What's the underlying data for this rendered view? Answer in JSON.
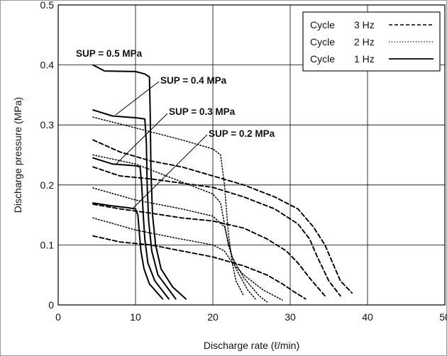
{
  "chart_data": {
    "type": "line",
    "title": "",
    "xlabel": "Discharge rate (ℓ/min)",
    "ylabel": "Discharge pressure (MPa)",
    "xlim": [
      0,
      50
    ],
    "ylim": [
      0,
      0.5
    ],
    "xticks": [
      "0",
      "10",
      "20",
      "30",
      "40",
      "50"
    ],
    "yticks": [
      "0",
      "0.1",
      "0.2",
      "0.3",
      "0.4",
      "0.5"
    ],
    "grid": true,
    "legend_position": "top-right",
    "legend": [
      {
        "label": "Cycle",
        "freq": "3 Hz",
        "style": "dashed"
      },
      {
        "label": "Cycle",
        "freq": "2 Hz",
        "style": "dotted"
      },
      {
        "label": "Cycle",
        "freq": "1 Hz",
        "style": "solid"
      }
    ],
    "annotations": [
      {
        "text": "SUP = 0.5 MPa"
      },
      {
        "text": "SUP = 0.4 MPa"
      },
      {
        "text": "SUP = 0.3 MPa"
      },
      {
        "text": "SUP = 0.2 MPa"
      }
    ],
    "series": [
      {
        "sup": "0.5 MPa",
        "freq": "1 Hz",
        "style": "solid",
        "points": [
          [
            4.5,
            0.4
          ],
          [
            6,
            0.39
          ],
          [
            10,
            0.389
          ],
          [
            11.2,
            0.385
          ],
          [
            11.8,
            0.38
          ],
          [
            11.9,
            0.32
          ],
          [
            12.0,
            0.22
          ],
          [
            12.2,
            0.15
          ],
          [
            12.6,
            0.1
          ],
          [
            13.3,
            0.06
          ],
          [
            14.8,
            0.03
          ],
          [
            16.5,
            0.01
          ]
        ]
      },
      {
        "sup": "0.4 MPa",
        "freq": "1 Hz",
        "style": "solid",
        "points": [
          [
            4.5,
            0.325
          ],
          [
            7,
            0.315
          ],
          [
            9,
            0.313
          ],
          [
            10,
            0.312
          ],
          [
            11.2,
            0.31
          ],
          [
            11.4,
            0.27
          ],
          [
            11.5,
            0.2
          ],
          [
            11.7,
            0.14
          ],
          [
            12.1,
            0.09
          ],
          [
            12.9,
            0.05
          ],
          [
            15.2,
            0.01
          ]
        ]
      },
      {
        "sup": "0.3 MPa",
        "freq": "1 Hz",
        "style": "solid",
        "points": [
          [
            4.5,
            0.245
          ],
          [
            7,
            0.235
          ],
          [
            9,
            0.233
          ],
          [
            10,
            0.232
          ],
          [
            10.6,
            0.23
          ],
          [
            10.8,
            0.2
          ],
          [
            11.0,
            0.15
          ],
          [
            11.2,
            0.11
          ],
          [
            11.6,
            0.07
          ],
          [
            12.5,
            0.04
          ],
          [
            14.3,
            0.01
          ]
        ]
      },
      {
        "sup": "0.2 MPa",
        "freq": "1 Hz",
        "style": "solid",
        "points": [
          [
            4.5,
            0.17
          ],
          [
            7,
            0.165
          ],
          [
            9,
            0.162
          ],
          [
            10,
            0.16
          ],
          [
            10.3,
            0.15
          ],
          [
            10.5,
            0.12
          ],
          [
            10.7,
            0.09
          ],
          [
            11.1,
            0.06
          ],
          [
            11.8,
            0.035
          ],
          [
            13.5,
            0.01
          ]
        ]
      },
      {
        "sup": "0.5 MPa",
        "freq": "2 Hz",
        "style": "dotted",
        "points": [
          [
            4.5,
            0.313
          ],
          [
            10,
            0.295
          ],
          [
            16,
            0.275
          ],
          [
            20,
            0.26
          ],
          [
            21,
            0.25
          ],
          [
            21.5,
            0.2
          ],
          [
            22,
            0.12
          ],
          [
            22.5,
            0.07
          ],
          [
            23,
            0.04
          ],
          [
            24,
            0.015
          ]
        ]
      },
      {
        "sup": "0.4 MPa",
        "freq": "2 Hz",
        "style": "dotted",
        "points": [
          [
            4.5,
            0.25
          ],
          [
            10,
            0.235
          ],
          [
            16,
            0.205
          ],
          [
            20,
            0.185
          ],
          [
            21,
            0.17
          ],
          [
            22,
            0.1
          ],
          [
            23,
            0.06
          ],
          [
            24.5,
            0.025
          ],
          [
            25.5,
            0.01
          ]
        ]
      },
      {
        "sup": "0.3 MPa",
        "freq": "2 Hz",
        "style": "dotted",
        "points": [
          [
            4.5,
            0.195
          ],
          [
            10,
            0.175
          ],
          [
            16,
            0.16
          ],
          [
            20,
            0.148
          ],
          [
            21.5,
            0.13
          ],
          [
            22.5,
            0.08
          ],
          [
            24,
            0.045
          ],
          [
            26,
            0.015
          ],
          [
            27,
            0.005
          ]
        ]
      },
      {
        "sup": "0.2 MPa",
        "freq": "2 Hz",
        "style": "dotted",
        "points": [
          [
            4.5,
            0.145
          ],
          [
            10,
            0.125
          ],
          [
            15,
            0.112
          ],
          [
            20,
            0.1
          ],
          [
            21.5,
            0.09
          ],
          [
            22.5,
            0.07
          ],
          [
            24,
            0.05
          ],
          [
            26.5,
            0.025
          ],
          [
            29,
            0.008
          ]
        ]
      },
      {
        "sup": "0.5 MPa",
        "freq": "3 Hz",
        "style": "dashed",
        "points": [
          [
            4.5,
            0.275
          ],
          [
            8,
            0.255
          ],
          [
            12,
            0.24
          ],
          [
            16,
            0.23
          ],
          [
            20,
            0.215
          ],
          [
            24,
            0.2
          ],
          [
            28,
            0.18
          ],
          [
            31,
            0.16
          ],
          [
            33,
            0.13
          ],
          [
            34.5,
            0.1
          ],
          [
            35.5,
            0.07
          ],
          [
            36.5,
            0.04
          ],
          [
            38,
            0.02
          ]
        ]
      },
      {
        "sup": "0.4 MPa",
        "freq": "3 Hz",
        "style": "dashed",
        "points": [
          [
            4.5,
            0.23
          ],
          [
            8,
            0.215
          ],
          [
            12,
            0.21
          ],
          [
            16,
            0.203
          ],
          [
            20,
            0.196
          ],
          [
            24,
            0.18
          ],
          [
            28,
            0.16
          ],
          [
            31,
            0.135
          ],
          [
            32.5,
            0.11
          ],
          [
            33.5,
            0.08
          ],
          [
            35,
            0.04
          ],
          [
            36.5,
            0.015
          ]
        ]
      },
      {
        "sup": "0.3 MPa",
        "freq": "3 Hz",
        "style": "dashed",
        "points": [
          [
            4.5,
            0.168
          ],
          [
            8,
            0.16
          ],
          [
            12,
            0.153
          ],
          [
            16,
            0.145
          ],
          [
            20,
            0.14
          ],
          [
            24,
            0.128
          ],
          [
            27,
            0.11
          ],
          [
            29.5,
            0.09
          ],
          [
            31,
            0.07
          ],
          [
            32.5,
            0.045
          ],
          [
            34.5,
            0.015
          ]
        ]
      },
      {
        "sup": "0.2 MPa",
        "freq": "3 Hz",
        "style": "dashed",
        "points": [
          [
            4.5,
            0.115
          ],
          [
            8,
            0.105
          ],
          [
            12,
            0.1
          ],
          [
            16,
            0.09
          ],
          [
            20,
            0.08
          ],
          [
            24,
            0.065
          ],
          [
            27,
            0.05
          ],
          [
            29,
            0.035
          ],
          [
            30.5,
            0.022
          ],
          [
            32,
            0.01
          ]
        ]
      }
    ]
  }
}
